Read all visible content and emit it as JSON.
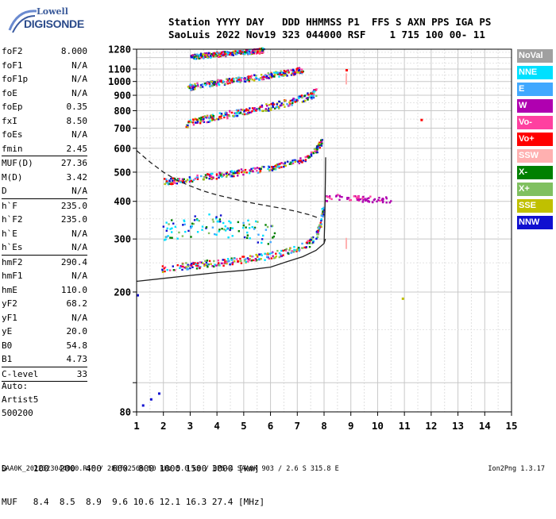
{
  "logo": {
    "line1": "Lowell",
    "line2": "DIGISONDE"
  },
  "header": {
    "line1": "Station YYYY DAY   DDD HHMMSS P1  FFS S AXN PPS IGA PS",
    "line2": "SaoLuis 2022 Nov19 323 044000 RSF    1 715 100 00- 11"
  },
  "params": [
    {
      "name": "foF2",
      "value": "8.000"
    },
    {
      "name": "foF1",
      "value": "N/A"
    },
    {
      "name": "foF1p",
      "value": "N/A"
    },
    {
      "name": "foE",
      "value": "N/A"
    },
    {
      "name": "foEp",
      "value": "0.35"
    },
    {
      "name": "fxI",
      "value": "8.50"
    },
    {
      "name": "foEs",
      "value": "N/A"
    },
    {
      "name": "fmin",
      "value": "2.45"
    },
    {
      "name": "MUF(D)",
      "value": "27.36"
    },
    {
      "name": "M(D)",
      "value": "3.42"
    },
    {
      "name": "D",
      "value": "N/A"
    },
    {
      "name": "h`F",
      "value": "235.0"
    },
    {
      "name": "h`F2",
      "value": "235.0"
    },
    {
      "name": "h`E",
      "value": "N/A"
    },
    {
      "name": "h`Es",
      "value": "N/A"
    },
    {
      "name": "hmF2",
      "value": "290.4"
    },
    {
      "name": "hmF1",
      "value": "N/A"
    },
    {
      "name": "hmE",
      "value": "110.0"
    },
    {
      "name": "yF2",
      "value": "68.2"
    },
    {
      "name": "yF1",
      "value": "N/A"
    },
    {
      "name": "yE",
      "value": "20.0"
    },
    {
      "name": "B0",
      "value": "54.8"
    },
    {
      "name": "B1",
      "value": "4.73"
    },
    {
      "name": "C-level",
      "value": "33"
    }
  ],
  "auto": {
    "label": "Auto:",
    "artist": "Artist5",
    "version": "500200"
  },
  "bottom": {
    "d_line": "D     100  200  400  600  800 1000 1500 3000 [km]",
    "muf_line": "MUF   8.4  8.5  8.9  9.6 10.6 12.1 16.3 27.4 [MHz]"
  },
  "footer": {
    "left": "SAA0K_2022323044000.RSF / 280fx256h 50 kHz 5.0 km / DPS-4 SAA0K 903 / 2.6 S 315.8 E",
    "right": "Ion2Png 1.3.17"
  },
  "legend": [
    {
      "label": "NoVal",
      "color": "#a0a0a0"
    },
    {
      "label": "NNE",
      "color": "#00e0ff"
    },
    {
      "label": "E",
      "color": "#40a8ff"
    },
    {
      "label": "W",
      "color": "#b000b0"
    },
    {
      "label": "Vo-",
      "color": "#ff40a0"
    },
    {
      "label": "Vo+",
      "color": "#ff0000"
    },
    {
      "label": "SSW",
      "color": "#ffb0b0"
    },
    {
      "label": "X-",
      "color": "#008000"
    },
    {
      "label": "X+",
      "color": "#80c060"
    },
    {
      "label": "SSE",
      "color": "#c0c000"
    },
    {
      "label": "NNW",
      "color": "#1010d0"
    }
  ],
  "chart_data": {
    "type": "scatter",
    "xlabel": "",
    "ylabel": "",
    "xlim": [
      1,
      15
    ],
    "ylim": [
      80,
      1280
    ],
    "x_scale": "linear",
    "y_scale": "log",
    "x_ticks": [
      "1",
      "2",
      "3",
      "4",
      "5",
      "6",
      "7",
      "8",
      "9",
      "10",
      "11",
      "12",
      "13",
      "14",
      "15"
    ],
    "y_ticks": [
      {
        "value": 80,
        "label": "80"
      },
      {
        "value": 100,
        "label": ""
      },
      {
        "value": 200,
        "label": "200"
      },
      {
        "value": 300,
        "label": "300"
      },
      {
        "value": 400,
        "label": "400"
      },
      {
        "value": 500,
        "label": "500"
      },
      {
        "value": 600,
        "label": "600"
      },
      {
        "value": 700,
        "label": "700"
      },
      {
        "value": 800,
        "label": "800"
      },
      {
        "value": 900,
        "label": "900"
      },
      {
        "value": 1000,
        "label": "1000"
      },
      {
        "value": 1100,
        "label": "1100"
      },
      {
        "value": 1280,
        "label": "1280"
      }
    ],
    "grid": true,
    "traces": [
      {
        "name": "O-trace 1 hop",
        "band": 0.06,
        "points": [
          [
            1.9,
            240
          ],
          [
            2.5,
            243
          ],
          [
            3,
            246
          ],
          [
            3.5,
            249
          ],
          [
            4,
            252
          ],
          [
            4.5,
            255
          ],
          [
            5,
            258
          ],
          [
            5.5,
            262
          ],
          [
            6,
            266
          ],
          [
            6.5,
            272
          ],
          [
            7,
            280
          ],
          [
            7.4,
            292
          ],
          [
            7.7,
            310
          ],
          [
            7.85,
            340
          ],
          [
            7.95,
            380
          ]
        ]
      },
      {
        "name": "O-trace 2 hop",
        "band": 0.05,
        "points": [
          [
            2,
            468
          ],
          [
            2.5,
            472
          ],
          [
            3,
            478
          ],
          [
            3.5,
            484
          ],
          [
            4,
            490
          ],
          [
            4.5,
            497
          ],
          [
            5,
            505
          ],
          [
            5.5,
            513
          ],
          [
            6,
            522
          ],
          [
            6.5,
            533
          ],
          [
            7,
            548
          ],
          [
            7.4,
            568
          ],
          [
            7.7,
            600
          ],
          [
            7.9,
            640
          ]
        ]
      },
      {
        "name": "O-trace 3 hop",
        "band": 0.06,
        "points": [
          [
            2.8,
            725
          ],
          [
            3.2,
            745
          ],
          [
            3.7,
            760
          ],
          [
            4.2,
            775
          ],
          [
            4.7,
            790
          ],
          [
            5.2,
            805
          ],
          [
            5.7,
            820
          ],
          [
            6.2,
            840
          ],
          [
            6.7,
            860
          ],
          [
            7.1,
            880
          ],
          [
            7.5,
            905
          ],
          [
            7.7,
            930
          ]
        ]
      },
      {
        "name": "O-trace 4 hop",
        "band": 0.05,
        "points": [
          [
            2.9,
            960
          ],
          [
            3.3,
            975
          ],
          [
            3.8,
            990
          ],
          [
            4.3,
            1005
          ],
          [
            4.8,
            1020
          ],
          [
            5.3,
            1035
          ],
          [
            5.8,
            1050
          ],
          [
            6.3,
            1065
          ],
          [
            6.8,
            1080
          ],
          [
            7.2,
            1100
          ]
        ]
      },
      {
        "name": "O-trace 5 hop",
        "band": 0.04,
        "points": [
          [
            3,
            1215
          ],
          [
            3.4,
            1225
          ],
          [
            3.9,
            1235
          ],
          [
            4.4,
            1245
          ],
          [
            4.9,
            1255
          ],
          [
            5.3,
            1265
          ],
          [
            5.7,
            1275
          ]
        ]
      },
      {
        "name": "spread F",
        "band": 0.1,
        "points": [
          [
            2,
            320
          ],
          [
            2.6,
            330
          ],
          [
            3.2,
            335
          ],
          [
            3.8,
            340
          ],
          [
            4.4,
            330
          ],
          [
            5,
            325
          ],
          [
            5.6,
            318
          ],
          [
            6.2,
            310
          ]
        ]
      },
      {
        "name": "oblique W",
        "band": 0.05,
        "points": [
          [
            8,
            410
          ],
          [
            8.5,
            415
          ],
          [
            9,
            412
          ],
          [
            9.5,
            410
          ],
          [
            10,
            408
          ],
          [
            10.5,
            408
          ]
        ]
      }
    ],
    "lines": [
      {
        "name": "profile",
        "style": "solid",
        "points": [
          [
            1,
            217
          ],
          [
            2,
            222
          ],
          [
            3,
            227
          ],
          [
            4,
            232
          ],
          [
            5,
            236
          ],
          [
            6,
            242
          ],
          [
            6.6,
            252
          ],
          [
            7.2,
            262
          ],
          [
            7.7,
            275
          ],
          [
            8,
            290
          ],
          [
            8.05,
            300
          ]
        ]
      },
      {
        "name": "profile vertical",
        "style": "solid",
        "points": [
          [
            8,
            290
          ],
          [
            8.02,
            330
          ],
          [
            8.04,
            400
          ],
          [
            8.05,
            480
          ],
          [
            8.06,
            560
          ]
        ]
      },
      {
        "name": "MUF curve",
        "style": "dashed",
        "points": [
          [
            1,
            590
          ],
          [
            1.5,
            540
          ],
          [
            2,
            500
          ],
          [
            2.5,
            470
          ],
          [
            3,
            450
          ],
          [
            3.5,
            433
          ],
          [
            4,
            420
          ],
          [
            4.5,
            410
          ],
          [
            5,
            400
          ],
          [
            5.5,
            392
          ],
          [
            6,
            385
          ],
          [
            6.5,
            378
          ],
          [
            7,
            370
          ],
          [
            7.5,
            360
          ],
          [
            7.8,
            352
          ]
        ]
      }
    ],
    "isolated_marks": [
      {
        "x": 8.8,
        "y": 1090,
        "series": "Vo+"
      },
      {
        "x": 8.8,
        "y": 1020,
        "series": "SSW"
      },
      {
        "x": 8.8,
        "y": 290,
        "series": "SSW"
      },
      {
        "x": 11.6,
        "y": 745,
        "series": "Vo+"
      },
      {
        "x": 10.9,
        "y": 190,
        "series": "SSE"
      },
      {
        "x": 1.2,
        "y": 84,
        "series": "NNW"
      },
      {
        "x": 1.5,
        "y": 88,
        "series": "NNW"
      },
      {
        "x": 1.8,
        "y": 92,
        "series": "NNW"
      },
      {
        "x": 1.0,
        "y": 195,
        "series": "NNW"
      }
    ]
  }
}
